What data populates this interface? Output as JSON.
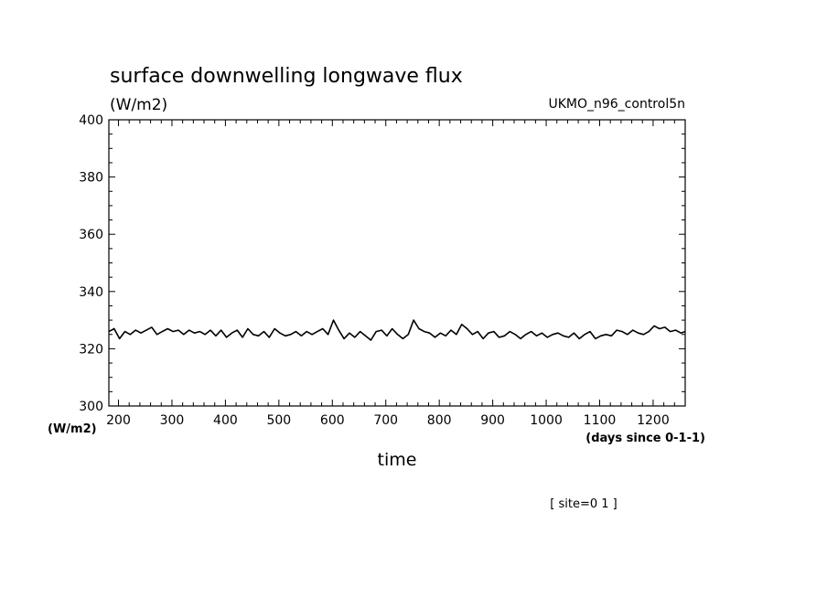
{
  "chart_data": {
    "type": "line",
    "title": "surface downwelling longwave flux",
    "subtitle": "(W/m2)",
    "model_label": "UKMO_n96_control5n",
    "xlabel": "time",
    "x_units_label": "(days since 0-1-1)",
    "y_units_label": "(W/m2)",
    "footer": "[ site=0 1 ]",
    "xlim": [
      182,
      1260
    ],
    "ylim": [
      300,
      400
    ],
    "x_ticks": [
      200,
      300,
      400,
      500,
      600,
      700,
      800,
      900,
      1000,
      1100,
      1200
    ],
    "y_ticks": [
      300,
      320,
      340,
      360,
      380,
      400
    ],
    "grid": false,
    "series": [
      {
        "color": "#000000",
        "x": [
          182,
          192,
          202,
          212,
          222,
          232,
          242,
          252,
          262,
          272,
          282,
          292,
          302,
          312,
          322,
          332,
          342,
          352,
          362,
          372,
          382,
          392,
          402,
          412,
          422,
          432,
          442,
          452,
          462,
          472,
          482,
          492,
          502,
          512,
          522,
          532,
          542,
          552,
          562,
          572,
          582,
          592,
          602,
          612,
          622,
          632,
          642,
          652,
          662,
          672,
          682,
          692,
          702,
          712,
          722,
          732,
          742,
          752,
          762,
          772,
          782,
          792,
          802,
          812,
          822,
          832,
          842,
          852,
          862,
          872,
          882,
          892,
          902,
          912,
          922,
          932,
          942,
          952,
          962,
          972,
          982,
          992,
          1002,
          1012,
          1022,
          1032,
          1042,
          1052,
          1062,
          1072,
          1082,
          1092,
          1102,
          1112,
          1122,
          1132,
          1142,
          1152,
          1162,
          1172,
          1182,
          1192,
          1202,
          1212,
          1222,
          1232,
          1242,
          1252,
          1260
        ],
        "y": [
          326,
          327,
          323.5,
          326,
          325,
          326.5,
          325.5,
          326.5,
          327.5,
          325,
          326,
          327,
          326,
          326.5,
          325,
          326.5,
          325.5,
          326,
          325,
          326.5,
          324.5,
          326.5,
          324,
          325.5,
          326.5,
          324,
          327,
          325,
          324.5,
          326,
          324,
          327,
          325.5,
          324.5,
          325,
          326,
          324.5,
          326,
          325,
          326,
          327,
          325,
          330,
          326.5,
          323.5,
          325.5,
          324,
          326,
          324.5,
          323,
          326,
          326.5,
          324.5,
          327,
          325,
          323.5,
          325,
          330,
          327,
          326,
          325.5,
          324,
          325.5,
          324.5,
          326.5,
          325,
          328.5,
          327,
          325,
          326,
          323.5,
          325.5,
          326,
          324,
          324.5,
          326,
          325,
          323.5,
          325,
          326,
          324.5,
          325.5,
          324,
          325,
          325.5,
          324.5,
          324,
          325.5,
          323.5,
          325,
          326,
          323.5,
          324.5,
          325,
          324.5,
          326.5,
          326,
          325,
          326.5,
          325.5,
          325,
          326,
          328,
          327,
          327.5,
          326,
          326.5,
          325.5,
          326
        ]
      }
    ]
  }
}
